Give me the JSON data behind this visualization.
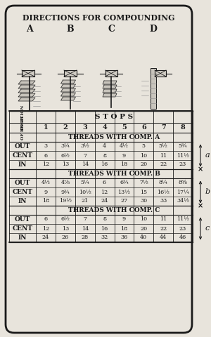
{
  "title": "DIRECTIONS FOR COMPOUNDING",
  "bg_color": "#e8e4dc",
  "border_color": "#1a1a1a",
  "stops_header": "S T O P S",
  "stops": [
    "1",
    "2",
    "3",
    "4",
    "5",
    "6",
    "7",
    "8"
  ],
  "sections": [
    {
      "header": "THREADS WITH COMP. A",
      "rows": [
        {
          "label": "OUT",
          "values": [
            "3",
            "3¼",
            "3½",
            "4",
            "4½",
            "5",
            "5½",
            "5¾"
          ]
        },
        {
          "label": "CENT",
          "values": [
            "6",
            "6½",
            "7",
            "8",
            "9",
            "10",
            "11",
            "11½"
          ]
        },
        {
          "label": "IN",
          "values": [
            "12",
            "13",
            "14",
            "16",
            "18",
            "20",
            "22",
            "23"
          ]
        }
      ]
    },
    {
      "header": "THREADS WITH COMP. B",
      "rows": [
        {
          "label": "OUT",
          "values": [
            "4½",
            "4⅞",
            "5¼",
            "6",
            "6¾",
            "7½",
            "8¼",
            "8⅝"
          ]
        },
        {
          "label": "CENT",
          "values": [
            "9",
            "9¾",
            "10½",
            "12",
            "13½",
            "15",
            "16½",
            "17¼"
          ]
        },
        {
          "label": "IN",
          "values": [
            "18",
            "19½",
            "21",
            "24",
            "27",
            "30",
            "33",
            "34½"
          ]
        }
      ]
    },
    {
      "header": "THREADS WITH COMP. C",
      "rows": [
        {
          "label": "OUT",
          "values": [
            "6",
            "6½",
            "7",
            "8",
            "9",
            "10",
            "11",
            "11½"
          ]
        },
        {
          "label": "CENT",
          "values": [
            "12",
            "13",
            "14",
            "16",
            "18",
            "20",
            "22",
            "23"
          ]
        },
        {
          "label": "IN",
          "values": [
            "24",
            "26",
            "28",
            "32",
            "36",
            "40",
            "44",
            "46"
          ]
        }
      ]
    }
  ],
  "lever_labels": [
    "A",
    "B",
    "C",
    "D"
  ],
  "side_labels": [
    "a",
    "b",
    "c"
  ]
}
